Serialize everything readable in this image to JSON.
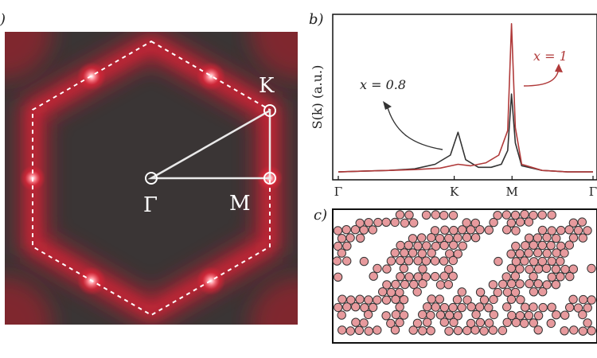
{
  "panels": {
    "a": {
      "label": ")"
    },
    "b": {
      "label": "b)"
    },
    "c": {
      "label": "c)"
    }
  },
  "panel_a": {
    "point_labels": {
      "gamma": "Γ",
      "k": "K",
      "m": "M"
    }
  },
  "chart_data": {
    "type": "line",
    "ylabel": "S(k) (a.u.)",
    "xticks": [
      "Γ",
      "K",
      "M",
      "Γ"
    ],
    "annotations": [
      {
        "text": "x = 0.8",
        "series": "x = 0.8"
      },
      {
        "text": "x = 1",
        "series": "x = 1"
      }
    ],
    "series": [
      {
        "name": "x = 0.8",
        "color": "#333333",
        "points": [
          [
            0,
            0.01
          ],
          [
            0.1,
            0.015
          ],
          [
            0.2,
            0.02
          ],
          [
            0.3,
            0.03
          ],
          [
            0.38,
            0.06
          ],
          [
            0.44,
            0.12
          ],
          [
            0.47,
            0.27
          ],
          [
            0.5,
            0.09
          ],
          [
            0.55,
            0.04
          ],
          [
            0.6,
            0.04
          ],
          [
            0.64,
            0.06
          ],
          [
            0.665,
            0.15
          ],
          [
            0.68,
            0.52
          ],
          [
            0.695,
            0.2
          ],
          [
            0.72,
            0.05
          ],
          [
            0.8,
            0.02
          ],
          [
            0.9,
            0.01
          ],
          [
            1.0,
            0.01
          ]
        ]
      },
      {
        "name": "x = 1",
        "color": "#b03a3a",
        "points": [
          [
            0,
            0.01
          ],
          [
            0.1,
            0.015
          ],
          [
            0.2,
            0.02
          ],
          [
            0.3,
            0.025
          ],
          [
            0.4,
            0.035
          ],
          [
            0.47,
            0.06
          ],
          [
            0.52,
            0.05
          ],
          [
            0.58,
            0.07
          ],
          [
            0.63,
            0.12
          ],
          [
            0.665,
            0.28
          ],
          [
            0.68,
            0.98
          ],
          [
            0.695,
            0.3
          ],
          [
            0.72,
            0.06
          ],
          [
            0.8,
            0.02
          ],
          [
            0.9,
            0.01
          ],
          [
            1.0,
            0.01
          ]
        ]
      }
    ]
  },
  "colors": {
    "heatmap_dark": "#3a3535",
    "heatmap_red": "#e8293a",
    "particle_fill": "#e79a9d",
    "particle_stroke": "#333333"
  }
}
